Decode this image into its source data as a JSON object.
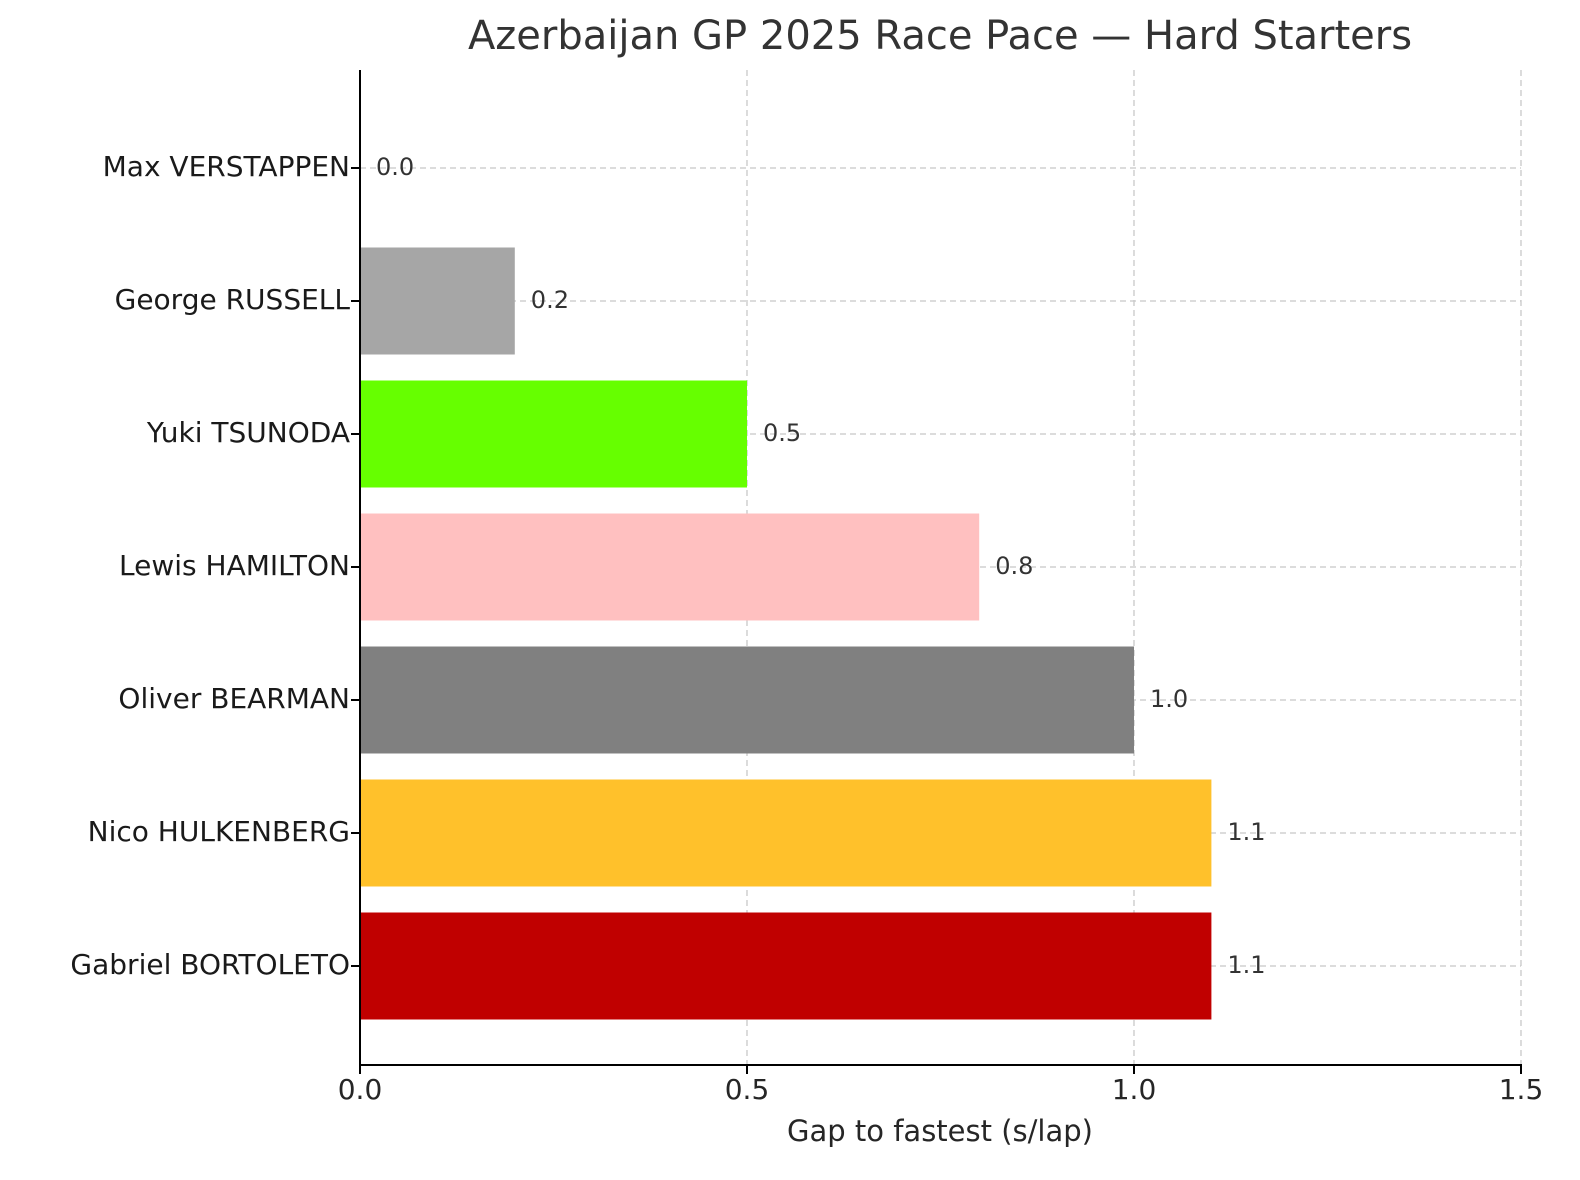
{
  "chart_data": {
    "type": "bar",
    "orientation": "horizontal",
    "title": "Azerbaijan GP 2025 Race Pace — Hard Starters",
    "x_label": "Gap to fastest (s/lap)",
    "categories": [
      "Max VERSTAPPEN",
      "George RUSSELL",
      "Yuki TSUNODA",
      "Lewis HAMILTON",
      "Oliver BEARMAN",
      "Nico HULKENBERG",
      "Gabriel BORTOLETO"
    ],
    "values": [
      0,
      0.2,
      0.5,
      0.8,
      1.0,
      1.1,
      1.1
    ],
    "value_labels": [
      "0.0",
      "0.2",
      "0.5",
      "0.8",
      "1.0",
      "1.1",
      "1.1"
    ],
    "colors": [
      null,
      "#a6a6a6",
      "#66ff00",
      "#ffc0c0",
      "#808080",
      "#ffc12b",
      "#c00000"
    ],
    "xlim": [
      0,
      1.5
    ],
    "xticks": [
      {
        "value": 0,
        "label": "0.0"
      },
      0.5,
      {
        "value": 1,
        "label": "1.0"
      },
      1.5
    ],
    "grid": true
  }
}
